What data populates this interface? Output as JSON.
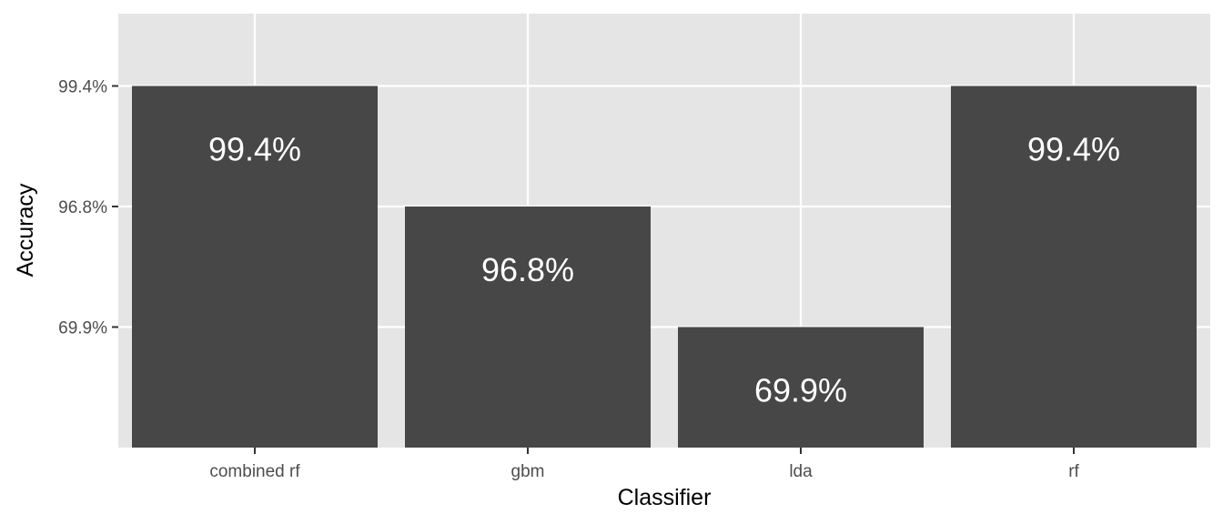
{
  "chart_data": {
    "type": "bar",
    "categories": [
      "combined rf",
      "gbm",
      "lda",
      "rf"
    ],
    "values": [
      "99.4%",
      "96.8%",
      "69.9%",
      "99.4%"
    ],
    "data_labels": [
      "99.4%",
      "96.8%",
      "69.9%",
      "99.4%"
    ],
    "y_axis_type": "discrete (ordered categories)",
    "y_levels": [
      "69.9%",
      "96.8%",
      "99.4%"
    ],
    "y_tick_labels": [
      "99.4%",
      "96.8%",
      "69.9%"
    ],
    "xlabel": "Classifier",
    "ylabel": "Accuracy",
    "grid": true,
    "legend": "none",
    "colors": {
      "bar": "#474747",
      "panel": "#e5e5e5",
      "grid": "#ffffff",
      "data_label": "#ffffff"
    }
  }
}
